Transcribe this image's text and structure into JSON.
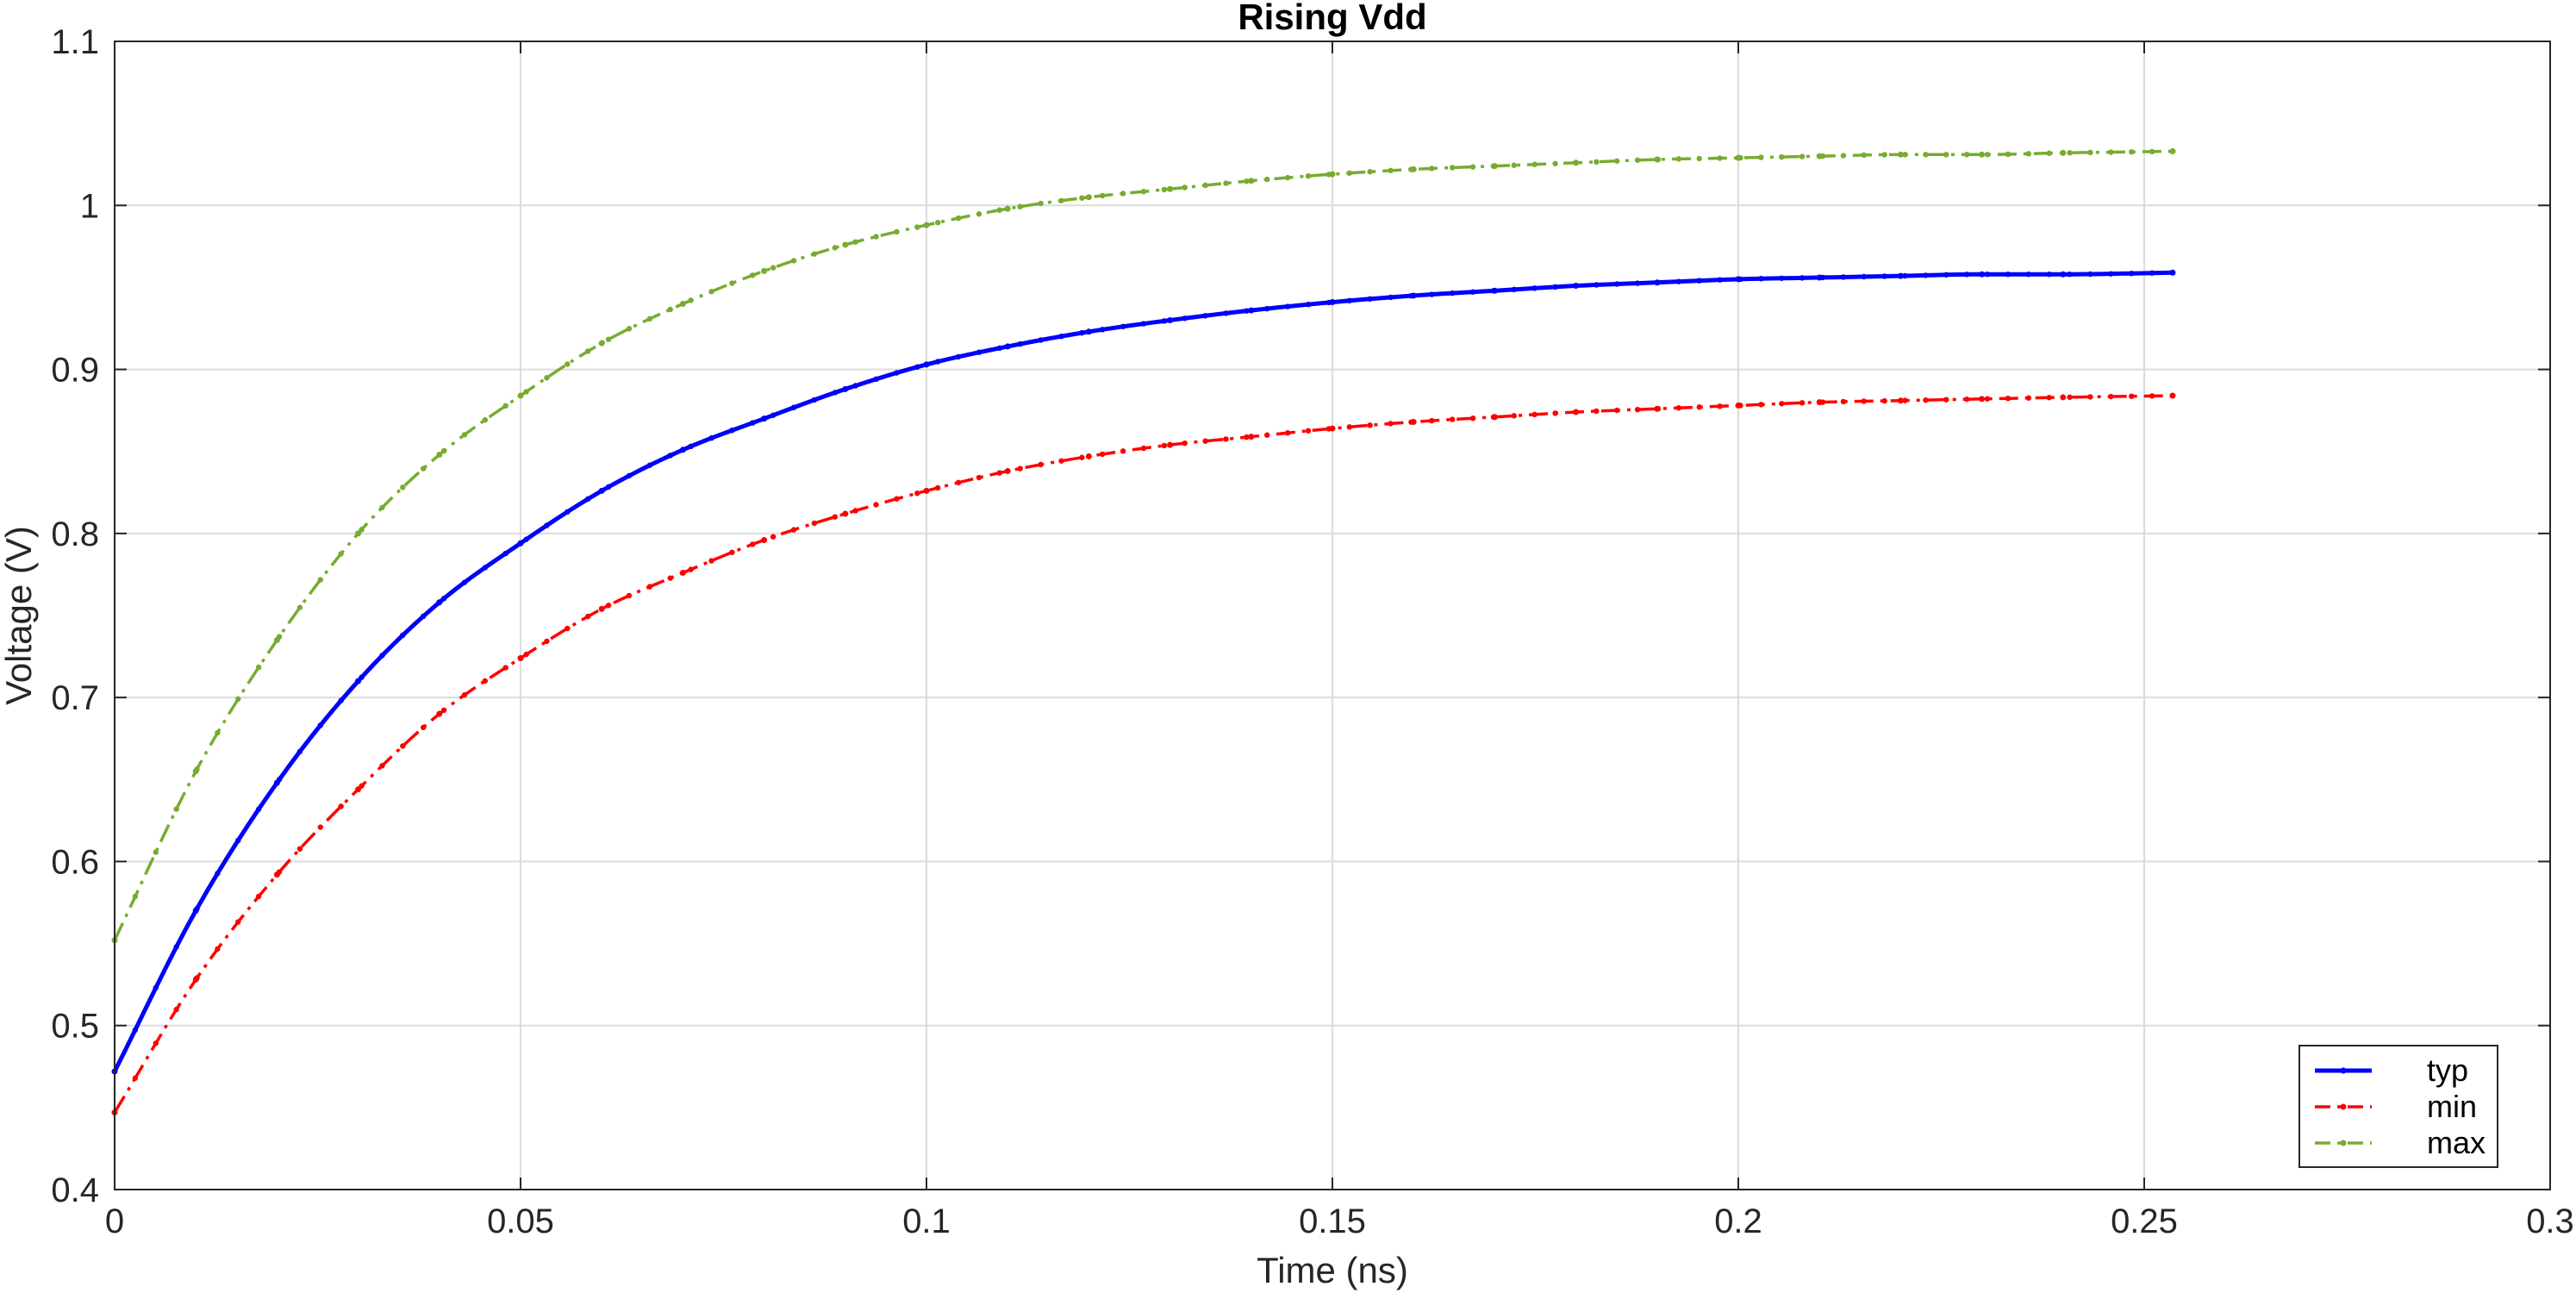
{
  "chart_data": {
    "type": "line",
    "title": "Rising  Vdd",
    "xlabel": "Time (ns)",
    "ylabel": "Voltage (V)",
    "xlim": [
      0,
      0.3
    ],
    "ylim": [
      0.4,
      1.1
    ],
    "xticks": [
      0,
      0.05,
      0.1,
      0.15,
      0.2,
      0.25,
      0.3
    ],
    "xtick_labels": [
      "0",
      "0.05",
      "0.1",
      "0.15",
      "0.2",
      "0.25",
      "0.3"
    ],
    "yticks": [
      0.4,
      0.5,
      0.6,
      0.7,
      0.8,
      0.9,
      1.0,
      1.1
    ],
    "ytick_labels": [
      "0.4",
      "0.5",
      "0.6",
      "0.7",
      "0.8",
      "0.9",
      "1",
      "1.1"
    ],
    "grid": true,
    "legend_position": "bottom-right",
    "x": [
      0,
      0.01,
      0.02,
      0.03,
      0.04,
      0.05,
      0.06,
      0.07,
      0.08,
      0.09,
      0.1,
      0.11,
      0.12,
      0.13,
      0.14,
      0.15,
      0.16,
      0.17,
      0.18,
      0.19,
      0.2,
      0.21,
      0.22,
      0.23,
      0.24,
      0.2535
    ],
    "series": [
      {
        "name": "typ",
        "color": "#0000ff",
        "style": "solid",
        "values": [
          0.472,
          0.57,
          0.648,
          0.71,
          0.758,
          0.794,
          0.826,
          0.851,
          0.87,
          0.888,
          0.903,
          0.914,
          0.923,
          0.93,
          0.936,
          0.941,
          0.945,
          0.948,
          0.951,
          0.953,
          0.955,
          0.956,
          0.957,
          0.958,
          0.958,
          0.959
        ]
      },
      {
        "name": "min",
        "color": "#ff0000",
        "style": "dash-dot",
        "values": [
          0.447,
          0.528,
          0.592,
          0.644,
          0.69,
          0.724,
          0.754,
          0.776,
          0.796,
          0.812,
          0.826,
          0.838,
          0.847,
          0.854,
          0.859,
          0.864,
          0.868,
          0.871,
          0.874,
          0.876,
          0.878,
          0.88,
          0.881,
          0.882,
          0.883,
          0.884
        ]
      },
      {
        "name": "max",
        "color": "#77ac30",
        "style": "dash-dot",
        "values": [
          0.552,
          0.655,
          0.735,
          0.8,
          0.848,
          0.884,
          0.916,
          0.94,
          0.96,
          0.976,
          0.988,
          0.998,
          1.005,
          1.01,
          1.015,
          1.019,
          1.022,
          1.024,
          1.026,
          1.028,
          1.029,
          1.03,
          1.031,
          1.031,
          1.032,
          1.033
        ]
      }
    ]
  }
}
